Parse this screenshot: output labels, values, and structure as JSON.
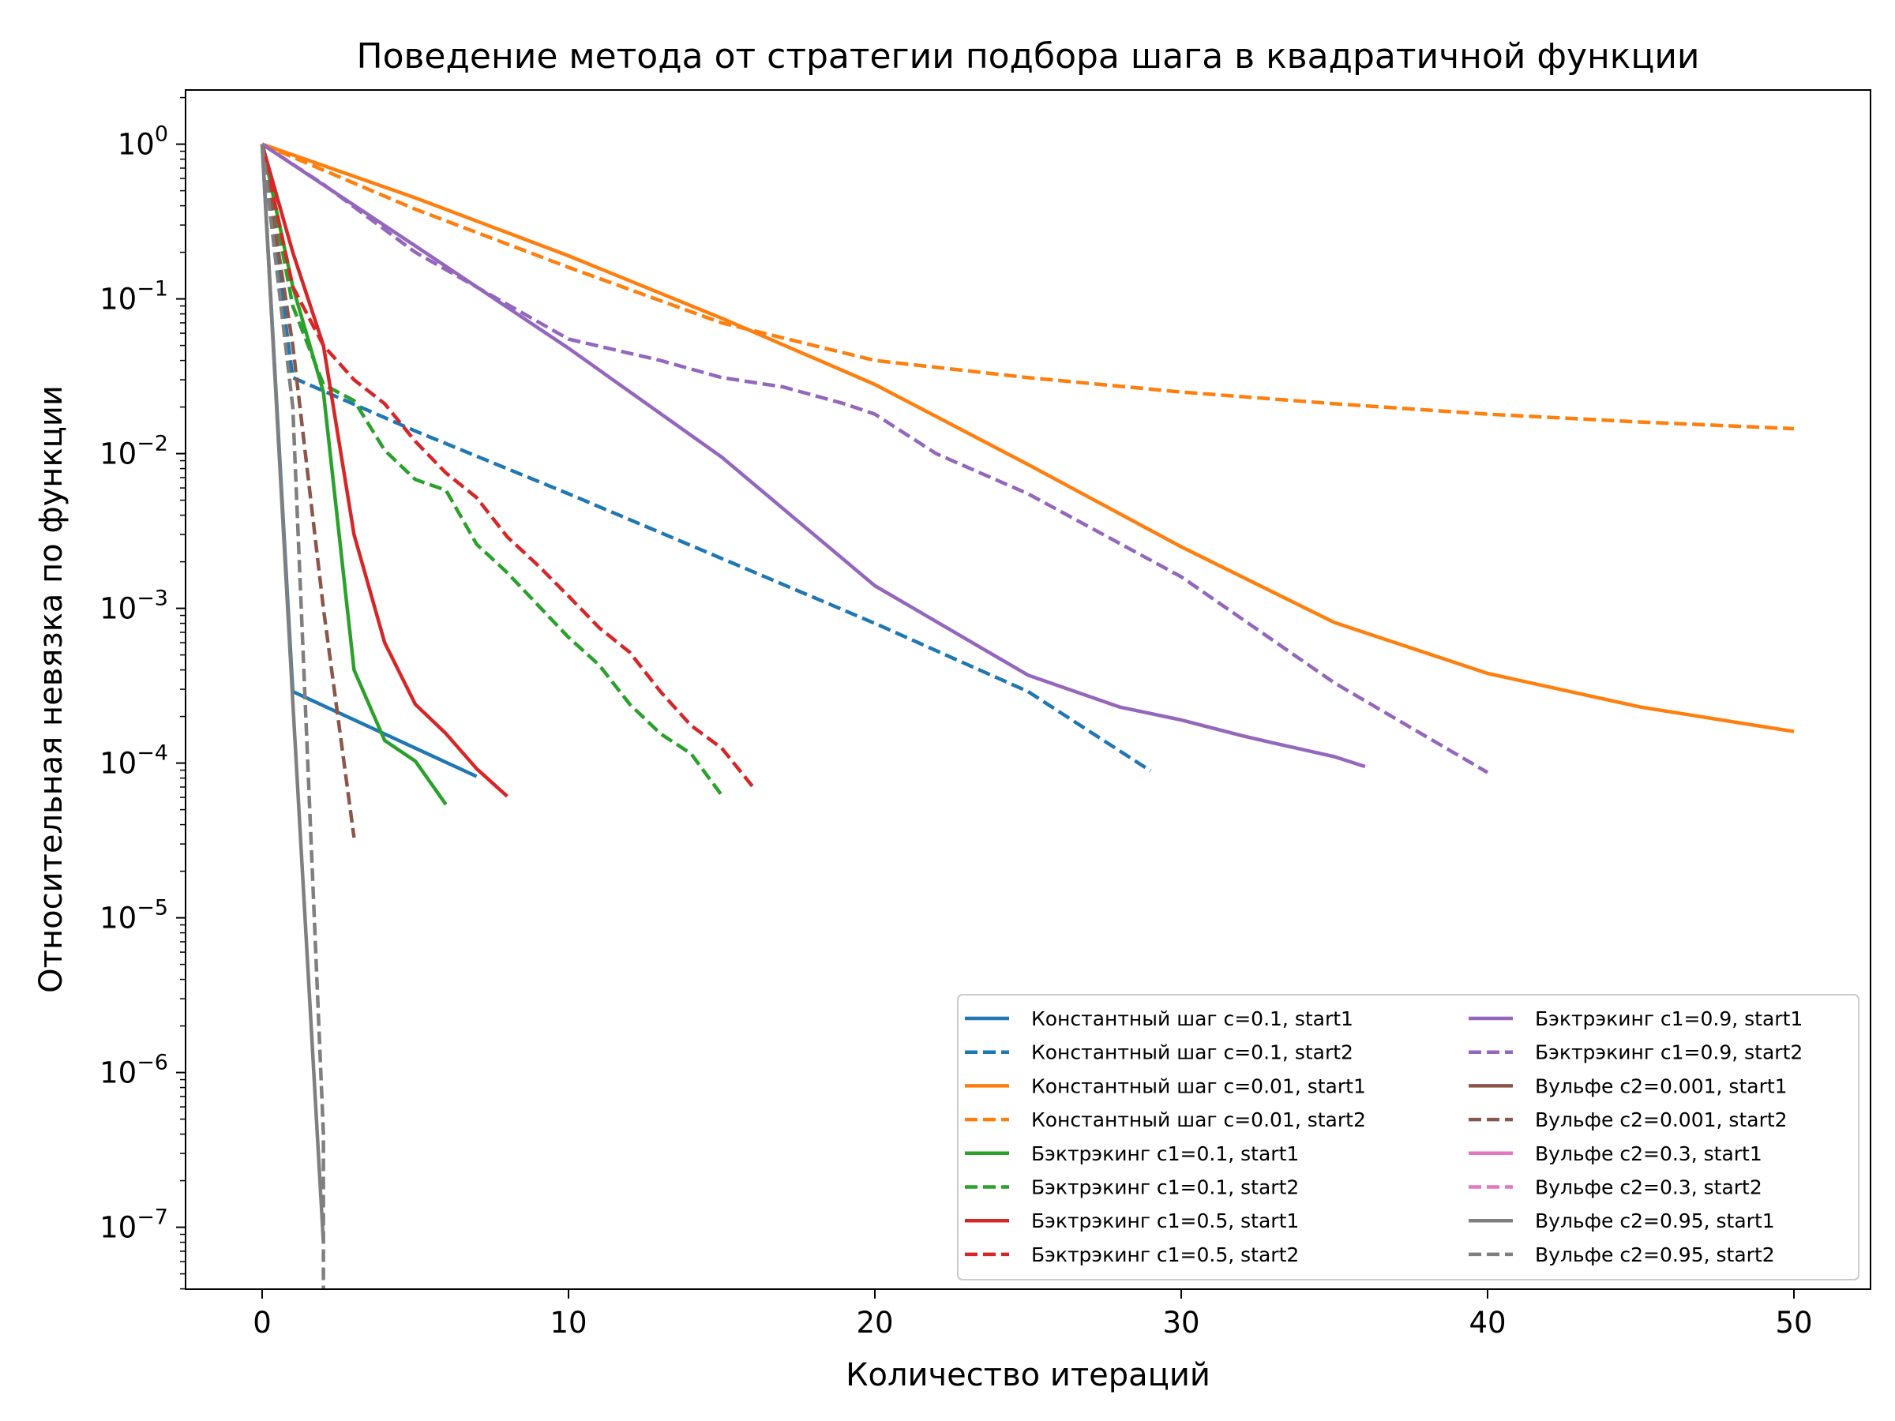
{
  "chart_data": {
    "type": "line",
    "title": "Поведение метода от стратегии подбора шага в квадратичной функции",
    "xlabel": "Количество итераций",
    "ylabel": "Относительная невязка по функции",
    "xlim": [
      -2.5,
      52.5
    ],
    "ylim_log10": [
      -7.4,
      0.35
    ],
    "yscale": "log",
    "grid": false,
    "legend_position": "lower-right",
    "legend_columns": 2,
    "x_ticks": [
      "0",
      "10",
      "20",
      "30",
      "40",
      "50"
    ],
    "y_ticks": [
      {
        "base": "10",
        "exp": "0"
      },
      {
        "base": "10",
        "exp": "−1"
      },
      {
        "base": "10",
        "exp": "−2"
      },
      {
        "base": "10",
        "exp": "−3"
      },
      {
        "base": "10",
        "exp": "−4"
      },
      {
        "base": "10",
        "exp": "−5"
      },
      {
        "base": "10",
        "exp": "−6"
      },
      {
        "base": "10",
        "exp": "−7"
      }
    ],
    "series": [
      {
        "name": "Константный шаг c=0.1, start1",
        "color": "#1f77b4",
        "dash": false,
        "points": [
          [
            0,
            1
          ],
          [
            1,
            0.00029
          ],
          [
            7,
            8.2e-05
          ]
        ]
      },
      {
        "name": "Константный шаг c=0.1, start2",
        "color": "#1f77b4",
        "dash": true,
        "points": [
          [
            0,
            1
          ],
          [
            1,
            0.031
          ],
          [
            5,
            0.014
          ],
          [
            10,
            0.0055
          ],
          [
            15,
            0.0021
          ],
          [
            20,
            0.0008
          ],
          [
            25,
            0.00029
          ],
          [
            29,
            8.9e-05
          ]
        ]
      },
      {
        "name": "Константный шаг c=0.01, start1",
        "color": "#ff7f0e",
        "dash": false,
        "points": [
          [
            0,
            1
          ],
          [
            5,
            0.45
          ],
          [
            10,
            0.19
          ],
          [
            15,
            0.075
          ],
          [
            20,
            0.028
          ],
          [
            25,
            0.0085
          ],
          [
            30,
            0.0025
          ],
          [
            35,
            0.00081
          ],
          [
            40,
            0.00038
          ],
          [
            45,
            0.00023
          ],
          [
            50,
            0.00016
          ]
        ]
      },
      {
        "name": "Константный шаг c=0.01, start2",
        "color": "#ff7f0e",
        "dash": true,
        "points": [
          [
            0,
            1
          ],
          [
            5,
            0.38
          ],
          [
            10,
            0.16
          ],
          [
            15,
            0.07
          ],
          [
            20,
            0.04
          ],
          [
            25,
            0.031
          ],
          [
            30,
            0.025
          ],
          [
            35,
            0.021
          ],
          [
            40,
            0.018
          ],
          [
            45,
            0.016
          ],
          [
            50,
            0.0145
          ]
        ]
      },
      {
        "name": "Бэктрэкинг c1=0.1, start1",
        "color": "#2ca02c",
        "dash": false,
        "points": [
          [
            0,
            1
          ],
          [
            1,
            0.12
          ],
          [
            2,
            0.025
          ],
          [
            3,
            0.0004
          ],
          [
            4,
            0.00014
          ],
          [
            5,
            0.000103
          ],
          [
            6,
            5.4e-05
          ]
        ]
      },
      {
        "name": "Бэктрэкинг c1=0.1, start2",
        "color": "#2ca02c",
        "dash": true,
        "points": [
          [
            0,
            1
          ],
          [
            1,
            0.09
          ],
          [
            2,
            0.028
          ],
          [
            3,
            0.022
          ],
          [
            4,
            0.0105
          ],
          [
            5,
            0.0068
          ],
          [
            6,
            0.0058
          ],
          [
            7,
            0.0026
          ],
          [
            8,
            0.0017
          ],
          [
            9,
            0.00105
          ],
          [
            10,
            0.00065
          ],
          [
            11,
            0.00043
          ],
          [
            12,
            0.00024
          ],
          [
            13,
            0.000155
          ],
          [
            14,
            0.000115
          ],
          [
            15,
            6.2e-05
          ]
        ]
      },
      {
        "name": "Бэктрэкинг c1=0.5, start1",
        "color": "#d62728",
        "dash": false,
        "points": [
          [
            0,
            1
          ],
          [
            1,
            0.2
          ],
          [
            2,
            0.05
          ],
          [
            3,
            0.003
          ],
          [
            4,
            0.0006
          ],
          [
            5,
            0.00024
          ],
          [
            6,
            0.000155
          ],
          [
            7,
            9.2e-05
          ],
          [
            8,
            6.1e-05
          ]
        ]
      },
      {
        "name": "Бэктрэкинг c1=0.5, start2",
        "color": "#d62728",
        "dash": true,
        "points": [
          [
            0,
            1
          ],
          [
            1,
            0.12
          ],
          [
            2,
            0.05
          ],
          [
            3,
            0.03
          ],
          [
            4,
            0.021
          ],
          [
            5,
            0.012
          ],
          [
            6,
            0.0075
          ],
          [
            7,
            0.0052
          ],
          [
            8,
            0.0029
          ],
          [
            9,
            0.0019
          ],
          [
            10,
            0.0012
          ],
          [
            11,
            0.00075
          ],
          [
            12,
            0.00052
          ],
          [
            13,
            0.00029
          ],
          [
            14,
            0.000175
          ],
          [
            15,
            0.000125
          ],
          [
            16,
            7.1e-05
          ]
        ]
      },
      {
        "name": "Бэктрэкинг c1=0.9, start1",
        "color": "#9467bd",
        "dash": false,
        "points": [
          [
            0,
            1
          ],
          [
            5,
            0.22
          ],
          [
            10,
            0.048
          ],
          [
            15,
            0.0095
          ],
          [
            20,
            0.0014
          ],
          [
            25,
            0.00037
          ],
          [
            28,
            0.00023
          ],
          [
            30,
            0.00019
          ],
          [
            32,
            0.00015
          ],
          [
            33,
            0.000135
          ],
          [
            35,
            0.00011
          ],
          [
            36,
            9.5e-05
          ]
        ]
      },
      {
        "name": "Бэктрэкинг c1=0.9, start2",
        "color": "#9467bd",
        "dash": true,
        "points": [
          [
            0,
            1
          ],
          [
            2,
            0.55
          ],
          [
            5,
            0.2
          ],
          [
            10,
            0.055
          ],
          [
            13,
            0.04
          ],
          [
            15,
            0.031
          ],
          [
            17,
            0.027
          ],
          [
            19,
            0.021
          ],
          [
            20,
            0.018
          ],
          [
            22,
            0.01
          ],
          [
            25,
            0.0055
          ],
          [
            30,
            0.0016
          ],
          [
            35,
            0.00033
          ],
          [
            40,
            8.7e-05
          ]
        ]
      },
      {
        "name": "Вульфе c2=0.001, start1",
        "color": "#8c564b",
        "dash": false,
        "points": []
      },
      {
        "name": "Вульфе c2=0.001, start2",
        "color": "#8c564b",
        "dash": true,
        "points": [
          [
            0,
            1
          ],
          [
            1,
            0.05
          ],
          [
            2,
            0.001
          ],
          [
            3,
            3.3e-05
          ]
        ]
      },
      {
        "name": "Вульфе c2=0.3, start1",
        "color": "#e377c2",
        "dash": false,
        "points": []
      },
      {
        "name": "Вульфе c2=0.3, start2",
        "color": "#e377c2",
        "dash": true,
        "points": []
      },
      {
        "name": "Вульфе c2=0.95, start1",
        "color": "#7f7f7f",
        "dash": false,
        "points": [
          [
            0,
            1
          ],
          [
            1,
            0.00025
          ],
          [
            2,
            8e-08
          ]
        ]
      },
      {
        "name": "Вульфе c2=0.95, start2",
        "color": "#7f7f7f",
        "dash": true,
        "points": [
          [
            0,
            1
          ],
          [
            1,
            0.02
          ],
          [
            2,
            4e-07
          ],
          [
            2,
            4e-08
          ]
        ]
      }
    ]
  }
}
